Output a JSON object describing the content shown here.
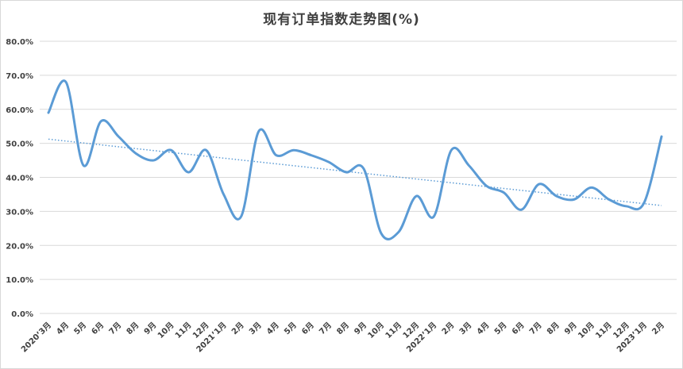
{
  "chart_data": {
    "type": "line",
    "title": "现有订单指数走势图(%)",
    "xlabel": "",
    "ylabel": "",
    "ylim": [
      0,
      80
    ],
    "yticks": [
      "0.0%",
      "10.0%",
      "20.0%",
      "30.0%",
      "40.0%",
      "50.0%",
      "60.0%",
      "70.0%",
      "80.0%"
    ],
    "grid": true,
    "legend": "none",
    "categories": [
      "2020’3月",
      "4月",
      "5月",
      "6月",
      "7月",
      "8月",
      "9月",
      "10月",
      "11月",
      "12月",
      "2021’1月",
      "2月",
      "3月",
      "4月",
      "5月",
      "6月",
      "7月",
      "8月",
      "9月",
      "10月",
      "11月",
      "12月",
      "2022’1月",
      "2月",
      "3月",
      "4月",
      "5月",
      "6月",
      "7月",
      "8月",
      "9月",
      "10月",
      "11月",
      "12月",
      "2023’1月",
      "2月"
    ],
    "series": [
      {
        "color": "#5b9bd5",
        "smooth": true,
        "values": [
          59,
          68,
          43.5,
          56.5,
          52,
          47,
          45,
          48,
          41.5,
          48,
          35,
          28.5,
          53.5,
          46.5,
          48,
          46.5,
          44.5,
          41.5,
          42.5,
          23.5,
          24,
          34.5,
          28.5,
          48,
          43.5,
          37.5,
          35.5,
          30.5,
          38,
          34.5,
          33.5,
          37,
          33.5,
          31.5,
          32.5,
          52
        ]
      }
    ],
    "trendline": {
      "type": "linear",
      "style": "dotted",
      "color": "#5b9bd5"
    }
  }
}
